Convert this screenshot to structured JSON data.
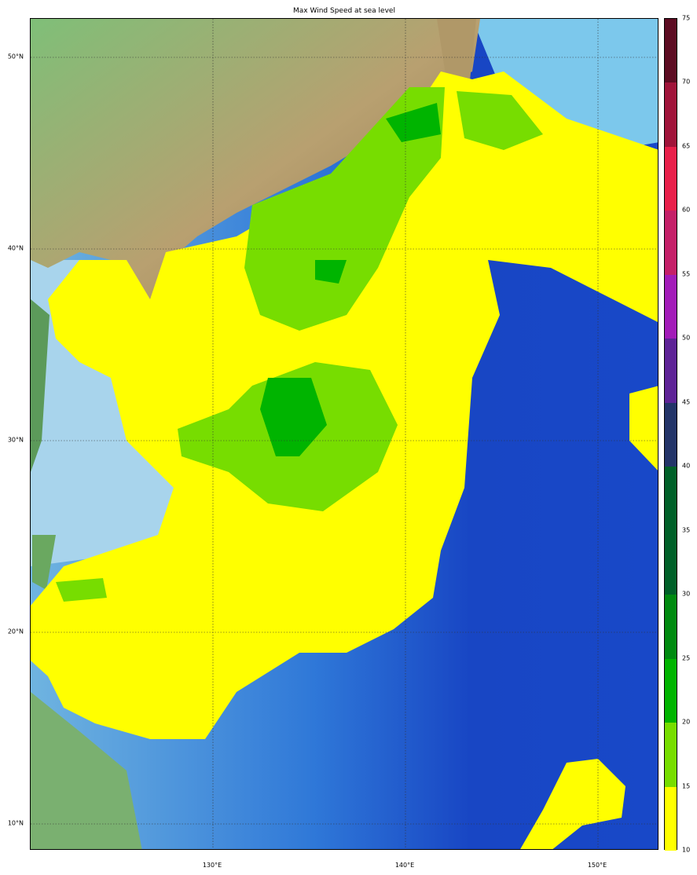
{
  "title": "Max Wind Speed at sea level",
  "latitude_labels": [
    {
      "value": 50,
      "label": "50°N"
    },
    {
      "value": 40,
      "label": "40°N"
    },
    {
      "value": 30,
      "label": "30°N"
    },
    {
      "value": 20,
      "label": "20°N"
    },
    {
      "value": 10,
      "label": "10°N"
    }
  ],
  "longitude_labels": [
    {
      "value": 130,
      "label": "130°E"
    },
    {
      "value": 140,
      "label": "140°E"
    },
    {
      "value": 150,
      "label": "150°E"
    }
  ],
  "colorbar": {
    "min": 10,
    "max": 75,
    "ticks": [
      "10",
      "15",
      "20",
      "25",
      "30",
      "35",
      "40",
      "45",
      "50",
      "55",
      "60",
      "65",
      "70",
      "75"
    ],
    "bands": [
      {
        "from": 10,
        "to": 15,
        "color": "#ffff00"
      },
      {
        "from": 15,
        "to": 20,
        "color": "#77dd00"
      },
      {
        "from": 20,
        "to": 25,
        "color": "#00b400"
      },
      {
        "from": 25,
        "to": 30,
        "color": "#008a10"
      },
      {
        "from": 30,
        "to": 35,
        "color": "#006028"
      },
      {
        "from": 35,
        "to": 40,
        "color": "#006028"
      },
      {
        "from": 40,
        "to": 45,
        "color": "#233468"
      },
      {
        "from": 45,
        "to": 50,
        "color": "#5e2396"
      },
      {
        "from": 50,
        "to": 55,
        "color": "#a21cb8"
      },
      {
        "from": 55,
        "to": 60,
        "color": "#c42068"
      },
      {
        "from": 60,
        "to": 65,
        "color": "#e8204a"
      },
      {
        "from": 65,
        "to": 70,
        "color": "#a0143a"
      },
      {
        "from": 70,
        "to": 75,
        "color": "#5c0c22"
      }
    ]
  }
}
